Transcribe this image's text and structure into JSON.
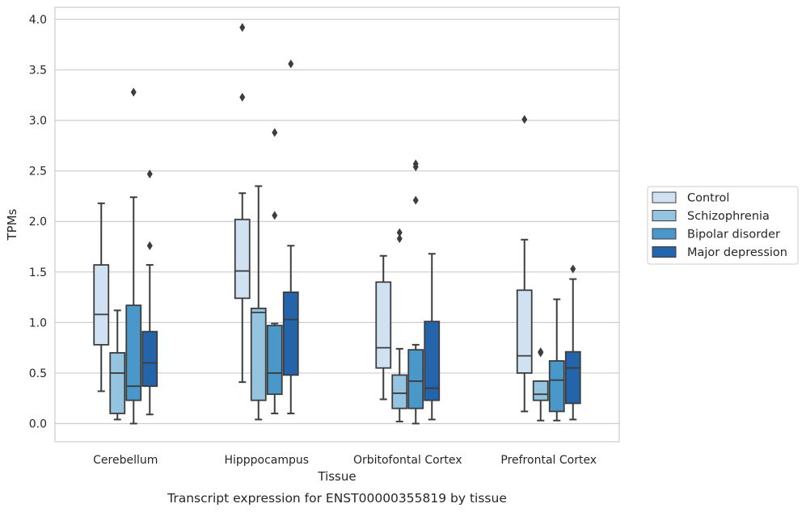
{
  "chart_data": {
    "type": "box",
    "title": "",
    "caption": "Transcript expression for ENST00000355819 by tissue",
    "xlabel": "Tissue",
    "ylabel": "TPMs",
    "ylim": [
      -0.18,
      4.12
    ],
    "yticks": [
      0.0,
      0.5,
      1.0,
      1.5,
      2.0,
      2.5,
      3.0,
      3.5,
      4.0
    ],
    "ytick_labels": [
      "0.0",
      "0.5",
      "1.0",
      "1.5",
      "2.0",
      "2.5",
      "3.0",
      "3.5",
      "4.0"
    ],
    "grid": "horizontal",
    "legend_position": "right",
    "categories": [
      "Cerebellum",
      "Hipppocampus",
      "Orbitofontal Cortex",
      "Prefrontal Cortex"
    ],
    "series": [
      {
        "name": "Control",
        "color": "#d0e1f2",
        "boxes": [
          {
            "whisker_low": 0.32,
            "q1": 0.78,
            "median": 1.08,
            "q3": 1.57,
            "whisker_high": 2.18,
            "outliers": []
          },
          {
            "whisker_low": 0.41,
            "q1": 1.24,
            "median": 1.51,
            "q3": 2.02,
            "whisker_high": 2.28,
            "outliers": [
              3.23,
              3.92
            ]
          },
          {
            "whisker_low": 0.24,
            "q1": 0.55,
            "median": 0.75,
            "q3": 1.4,
            "whisker_high": 1.66,
            "outliers": []
          },
          {
            "whisker_low": 0.12,
            "q1": 0.5,
            "median": 0.67,
            "q3": 1.32,
            "whisker_high": 1.82,
            "outliers": [
              3.01
            ]
          }
        ]
      },
      {
        "name": "Schizophrenia",
        "color": "#94c4df",
        "boxes": [
          {
            "whisker_low": 0.04,
            "q1": 0.1,
            "median": 0.5,
            "q3": 0.7,
            "whisker_high": 1.12,
            "outliers": []
          },
          {
            "whisker_low": 0.04,
            "q1": 0.23,
            "median": 1.1,
            "q3": 1.14,
            "whisker_high": 2.35,
            "outliers": []
          },
          {
            "whisker_low": 0.02,
            "q1": 0.15,
            "median": 0.3,
            "q3": 0.48,
            "whisker_high": 0.74,
            "outliers": [
              1.83,
              1.89
            ]
          },
          {
            "whisker_low": 0.03,
            "q1": 0.23,
            "median": 0.29,
            "q3": 0.42,
            "whisker_high": 0.42,
            "outliers": [
              0.7,
              0.71
            ]
          }
        ]
      },
      {
        "name": "Bipolar disorder",
        "color": "#4a98c9",
        "boxes": [
          {
            "whisker_low": 0.0,
            "q1": 0.23,
            "median": 0.37,
            "q3": 1.17,
            "whisker_high": 2.24,
            "outliers": [
              3.28
            ]
          },
          {
            "whisker_low": 0.1,
            "q1": 0.29,
            "median": 0.5,
            "q3": 0.97,
            "whisker_high": 0.99,
            "outliers": [
              2.06,
              2.88
            ]
          },
          {
            "whisker_low": 0.0,
            "q1": 0.15,
            "median": 0.42,
            "q3": 0.73,
            "whisker_high": 0.78,
            "outliers": [
              2.21,
              2.54,
              2.57
            ]
          },
          {
            "whisker_low": 0.03,
            "q1": 0.12,
            "median": 0.43,
            "q3": 0.62,
            "whisker_high": 1.23,
            "outliers": []
          }
        ]
      },
      {
        "name": "Major depression",
        "color": "#2464ab",
        "boxes": [
          {
            "whisker_low": 0.09,
            "q1": 0.37,
            "median": 0.6,
            "q3": 0.91,
            "whisker_high": 1.57,
            "outliers": [
              1.76,
              2.47
            ]
          },
          {
            "whisker_low": 0.1,
            "q1": 0.48,
            "median": 1.03,
            "q3": 1.3,
            "whisker_high": 1.76,
            "outliers": [
              3.56
            ]
          },
          {
            "whisker_low": 0.04,
            "q1": 0.23,
            "median": 0.35,
            "q3": 1.01,
            "whisker_high": 1.68,
            "outliers": []
          },
          {
            "whisker_low": 0.04,
            "q1": 0.2,
            "median": 0.55,
            "q3": 0.71,
            "whisker_high": 1.43,
            "outliers": [
              1.53
            ]
          }
        ]
      }
    ]
  }
}
